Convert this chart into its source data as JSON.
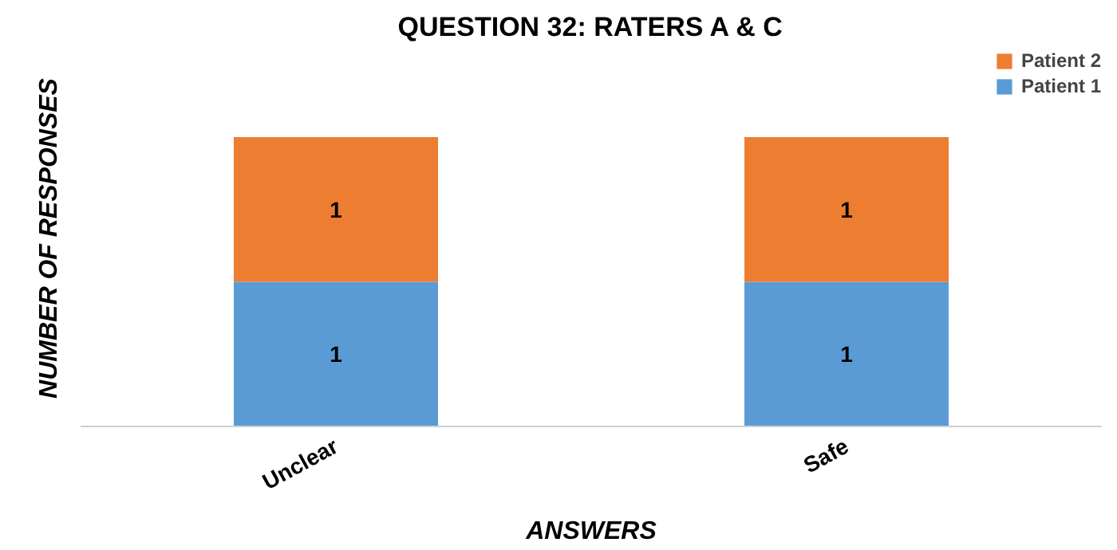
{
  "chart_data": {
    "type": "bar",
    "title": "QUESTION 32: RATERS A & C",
    "xlabel": "ANSWERS",
    "ylabel": "NUMBER OF RESPONSES",
    "categories": [
      "Unclear",
      "Safe"
    ],
    "stacked": true,
    "data_labels": true,
    "legend": "top right",
    "grid": false,
    "tick_labels": "x",
    "series": [
      {
        "name": "Patient 1",
        "color": "#5b9bd5",
        "values": [
          1,
          1
        ]
      },
      {
        "name": "Patient 2",
        "color": "#ed7d31",
        "values": [
          1,
          1
        ]
      }
    ]
  }
}
